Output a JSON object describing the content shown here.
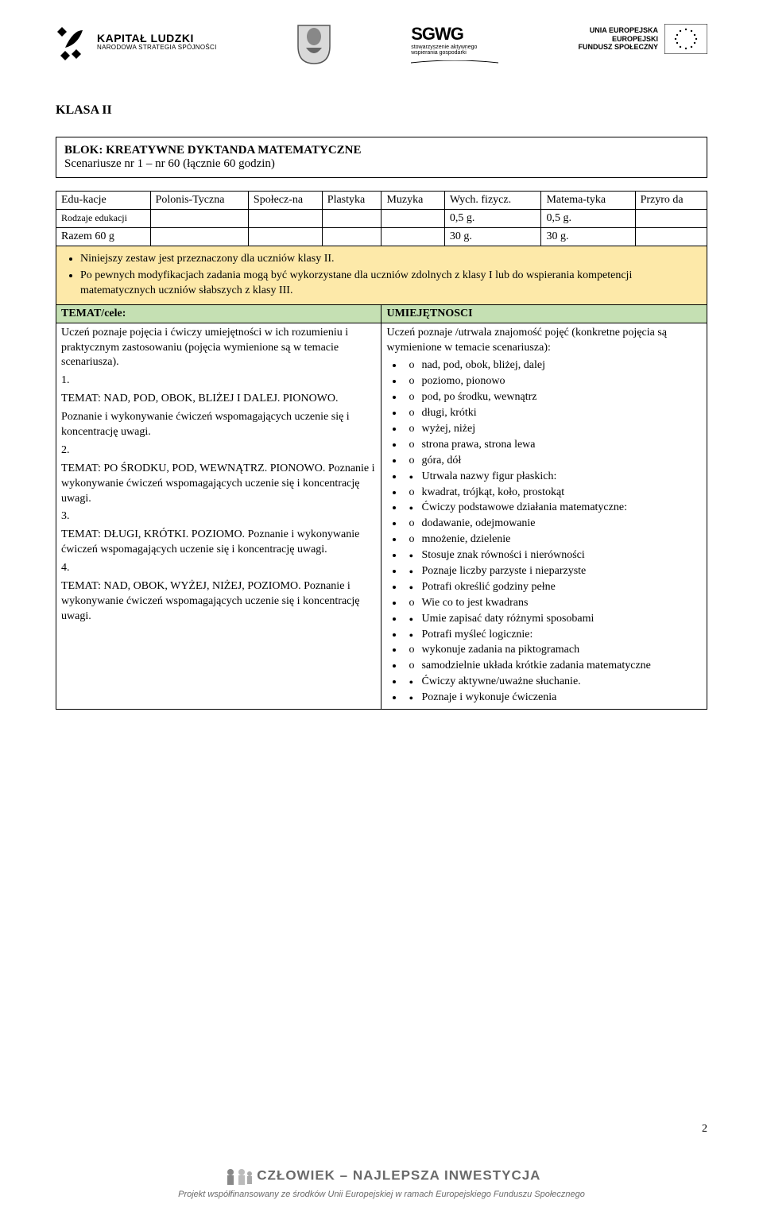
{
  "header": {
    "logo1_big": "KAPITAŁ LUDZKI",
    "logo1_small": "NARODOWA STRATEGIA SPÓJNOŚCI",
    "logo3_big": "SGWG",
    "logo3_small1": "stowarzyszenie aktywnego",
    "logo3_small2": "wspierania gospodarki",
    "eu_line1": "UNIA EUROPEJSKA",
    "eu_line2": "EUROPEJSKI",
    "eu_line3": "FUNDUSZ SPOŁECZNY"
  },
  "klasa": "KLASA II",
  "blok_title": "BLOK: KREATYWNE  DYKTANDA MATEMATYCZNE",
  "blok_sub": "Scenariusze nr 1 – nr 60 (łącznie 60 godzin)",
  "table": {
    "cols": [
      "Edu-kacje",
      "Polonis-Tyczna",
      "Społecz-na",
      "Plastyka",
      "Muzyka",
      "Wych. fizycz.",
      "Matema-tyka",
      "Przyro da"
    ],
    "row2_label": "Rodzaje edukacji",
    "row2_vals": [
      "",
      "",
      "",
      "",
      "0,5 g.",
      "0,5 g.",
      ""
    ],
    "row3_label": "Razem 60 g",
    "row3_vals": [
      "",
      "",
      "",
      "",
      "30 g.",
      "30 g.",
      ""
    ]
  },
  "yellow": {
    "item1": "Niniejszy zestaw jest przeznaczony dla uczniów klasy II.",
    "item2": "Po pewnych modyfikacjach zadania mogą być wykorzystane dla uczniów zdolnych z klasy I lub do wspierania kompetencji matematycznych uczniów słabszych z klasy III."
  },
  "green": {
    "left": "TEMAT/cele:",
    "right": "UMIEJĘTNOSCI"
  },
  "left_col": {
    "intro": "Uczeń poznaje pojęcia i ćwiczy umiejętności w ich rozumieniu i praktycznym zastosowaniu (pojęcia wymienione są w temacie scenariusza).",
    "n1": "1.",
    "t1a": "TEMAT: NAD, POD, OBOK, BLIŻEJ I DALEJ. PIONOWO.",
    "t1b": "Poznanie i wykonywanie ćwiczeń wspomagających uczenie się i koncentrację uwagi.",
    "n2": "2.",
    "t2a": "TEMAT: PO ŚRODKU, POD, WEWNĄTRZ. PIONOWO.",
    "t2b": " Poznanie i wykonywanie ćwiczeń wspomagających uczenie się i koncentrację uwagi.",
    "n3": "3.",
    "t3a": "TEMAT: DŁUGI, KRÓTKI. POZIOMO.",
    "t3b": " Poznanie i wykonywanie ćwiczeń wspomagających uczenie się i koncentrację uwagi.",
    "n4": "4.",
    "t4a": "TEMAT: NAD, OBOK, WYŻEJ, NIŻEJ, POZIOMO.",
    "t4b": " Poznanie i wykonywanie ćwiczeń wspomagających uczenie się i koncentrację uwagi."
  },
  "right_col": {
    "intro": "Uczeń poznaje /utrwala znajomość pojęć (konkretne pojęcia są wymienione w temacie scenariusza):",
    "items": [
      {
        "m": "o",
        "t": "nad, pod, obok,  bliżej, dalej"
      },
      {
        "m": "o",
        "t": "poziomo, pionowo"
      },
      {
        "m": "o",
        "t": "pod, po środku, wewnątrz"
      },
      {
        "m": "o",
        "t": "długi, krótki"
      },
      {
        "m": "o",
        "t": "wyżej, niżej"
      },
      {
        "m": "o",
        "t": "strona prawa, strona lewa"
      },
      {
        "m": "o",
        "t": "góra, dół"
      },
      {
        "m": "b",
        "t": "Utrwala nazwy figur płaskich:"
      },
      {
        "m": "o",
        "t": "kwadrat, trójkąt, koło, prostokąt"
      },
      {
        "m": "b",
        "t": "Ćwiczy podstawowe działania matematyczne:"
      },
      {
        "m": "o",
        "t": "dodawanie, odejmowanie"
      },
      {
        "m": "o",
        "t": "mnożenie, dzielenie"
      },
      {
        "m": "b",
        "t": "Stosuje znak równości i nierówności"
      },
      {
        "m": "b",
        "t": "Poznaje liczby parzyste i nieparzyste"
      },
      {
        "m": "b",
        "t": "Potrafi określić godziny pełne"
      },
      {
        "m": "o",
        "t": "Wie co to jest kwadrans"
      },
      {
        "m": "b",
        "t": "Umie zapisać daty różnymi sposobami"
      },
      {
        "m": "b",
        "t": "Potrafi myśleć logicznie:"
      },
      {
        "m": "o",
        "t": "wykonuje zadania na piktogramach"
      },
      {
        "m": "o",
        "t": "samodzielnie układa krótkie zadania matematyczne"
      },
      {
        "m": "b",
        "t": "Ćwiczy aktywne/uważne słuchanie."
      },
      {
        "m": "b",
        "t": "Poznaje i wykonuje ćwiczenia"
      }
    ]
  },
  "footer": {
    "slogan": "CZŁOWIEK – NAJLEPSZA INWESTYCJA",
    "sub": "Projekt współfinansowany ze środków Unii Europejskiej w ramach Europejskiego Funduszu Społecznego"
  },
  "page_number": "2"
}
